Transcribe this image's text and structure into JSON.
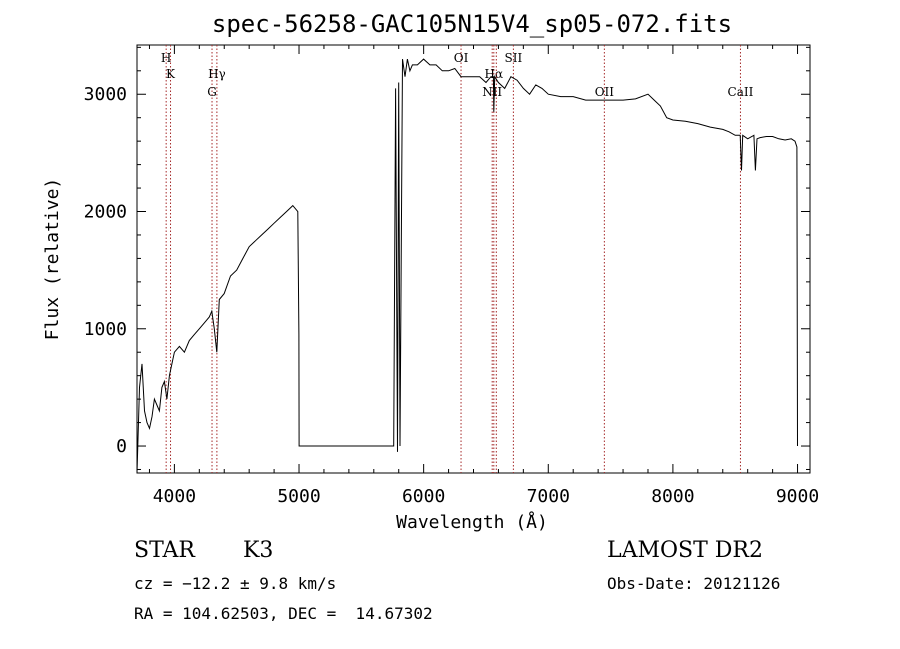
{
  "chart_data": {
    "type": "line",
    "title": "spec-56258-GAC105N15V4_sp05-072.fits",
    "xlabel": "Wavelength (Å)",
    "ylabel": "Flux (relative)",
    "xlim": [
      3700,
      9100
    ],
    "ylim": [
      -230,
      3420
    ],
    "xticks": [
      4000,
      5000,
      6000,
      7000,
      8000,
      9000
    ],
    "yticks": [
      0,
      1000,
      2000,
      3000
    ],
    "grid": false,
    "series": [
      {
        "x": [
          3700,
          3720,
          3740,
          3760,
          3780,
          3800,
          3820,
          3840,
          3860,
          3880,
          3900,
          3920,
          3940,
          3960,
          3980,
          4000,
          4040,
          4080,
          4120,
          4160,
          4200,
          4240,
          4280,
          4300,
          4320,
          4340,
          4360,
          4400,
          4450,
          4500,
          4550,
          4600,
          4650,
          4700,
          4750,
          4800,
          4850,
          4900,
          4950,
          4990,
          4999,
          5001,
          5300,
          5600,
          5760,
          5775,
          5790,
          5800,
          5810,
          5830,
          5850,
          5870,
          5890,
          5910,
          5950,
          6000,
          6050,
          6100,
          6150,
          6200,
          6250,
          6300,
          6350,
          6400,
          6450,
          6500,
          6540,
          6560,
          6563,
          6570,
          6600,
          6650,
          6700,
          6750,
          6800,
          6850,
          6900,
          6950,
          7000,
          7100,
          7200,
          7300,
          7400,
          7500,
          7600,
          7700,
          7800,
          7850,
          7900,
          7950,
          8000,
          8100,
          8200,
          8300,
          8400,
          8450,
          8500,
          8540,
          8550,
          8560,
          8600,
          8650,
          8662,
          8675,
          8700,
          8750,
          8800,
          8850,
          8900,
          8950,
          8980,
          8995,
          9000
        ],
        "y": [
          -230,
          500,
          700,
          300,
          200,
          150,
          250,
          400,
          350,
          300,
          500,
          550,
          400,
          600,
          700,
          800,
          850,
          800,
          900,
          950,
          1000,
          1050,
          1100,
          1150,
          1000,
          800,
          1250,
          1300,
          1450,
          1500,
          1600,
          1700,
          1750,
          1800,
          1850,
          1900,
          1950,
          2000,
          2050,
          2000,
          950,
          0,
          0,
          0,
          0,
          3050,
          -50,
          3100,
          0,
          3300,
          3150,
          3300,
          3200,
          3250,
          3250,
          3300,
          3250,
          3250,
          3200,
          3200,
          3220,
          3150,
          3150,
          3150,
          3150,
          3100,
          3150,
          3150,
          2850,
          3150,
          3100,
          3050,
          3150,
          3120,
          3050,
          3000,
          3080,
          3050,
          3000,
          2980,
          2980,
          2950,
          2950,
          2950,
          2950,
          2960,
          3000,
          2950,
          2900,
          2800,
          2780,
          2770,
          2750,
          2720,
          2700,
          2680,
          2650,
          2650,
          2350,
          2650,
          2620,
          2650,
          2350,
          2620,
          2630,
          2640,
          2640,
          2620,
          2610,
          2620,
          2600,
          2550,
          0
        ]
      }
    ],
    "spectral_lines": [
      {
        "x": 3934,
        "label": "H",
        "row": 1
      },
      {
        "x": 3969,
        "label": "K",
        "row": 2
      },
      {
        "x": 4302,
        "label": "G",
        "row": 3
      },
      {
        "x": 4341,
        "label": "Hγ",
        "row": 2
      },
      {
        "x": 6300,
        "label": "OI",
        "row": 1
      },
      {
        "x": 6550,
        "label": "NII",
        "row": 3
      },
      {
        "x": 6563,
        "label": "Hα",
        "row": 2
      },
      {
        "x": 6583,
        "label": "",
        "row": 0
      },
      {
        "x": 6720,
        "label": "SII",
        "row": 1
      },
      {
        "x": 7450,
        "label": "OII",
        "row": 3
      },
      {
        "x": 8542,
        "label": "CaII",
        "row": 3
      }
    ]
  },
  "info": {
    "class": "STAR",
    "subclass": "K3",
    "cz": "cz = −12.2 ± 9.8 km/s",
    "radec": "RA = 104.62503, DEC =  14.67302",
    "survey": "LAMOST DR2",
    "obsdate": "Obs-Date: 20121126"
  }
}
